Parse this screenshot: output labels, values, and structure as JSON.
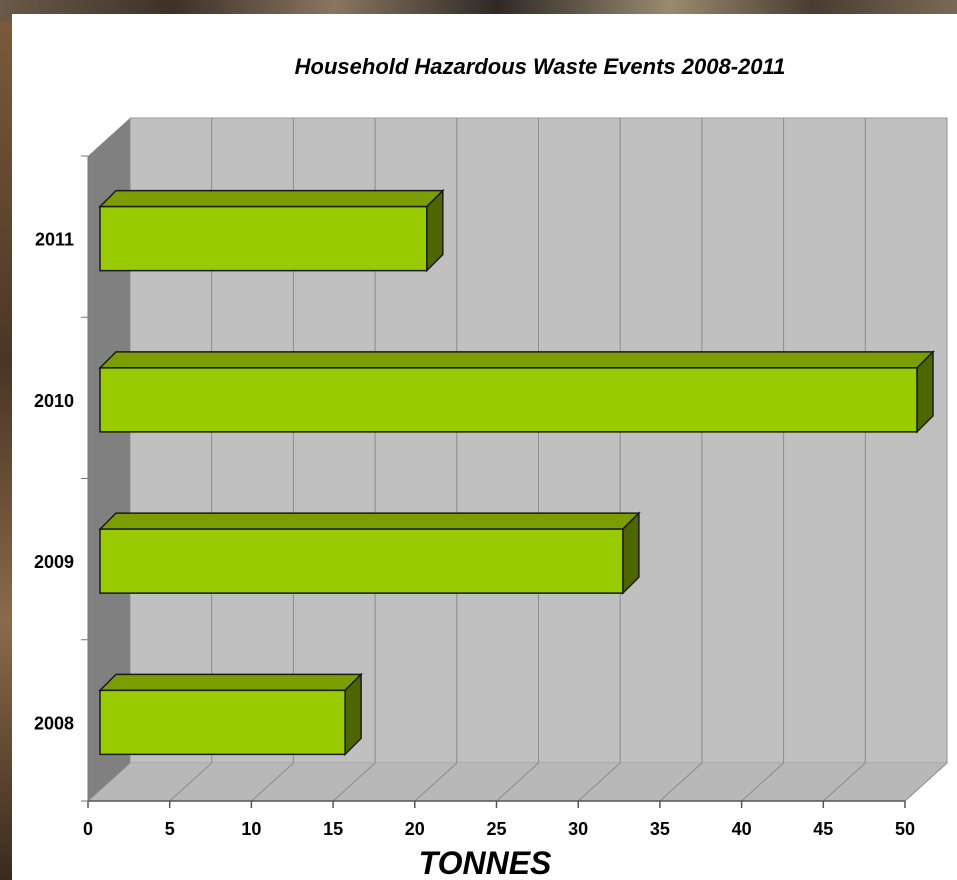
{
  "chart_data": {
    "type": "bar",
    "orientation": "horizontal",
    "title": "Household Hazardous Waste Events 2008-2011",
    "xlabel": "TONNES",
    "ylabel": "",
    "categories": [
      "2008",
      "2009",
      "2010",
      "2011"
    ],
    "values": [
      15,
      32,
      50,
      20
    ],
    "xlim": [
      0,
      50
    ],
    "xticks": [
      0,
      5,
      10,
      15,
      20,
      25,
      30,
      35,
      40,
      45,
      50
    ],
    "grid": true,
    "three_d": true,
    "colors": {
      "bar_front": "#99cc00",
      "bar_top": "#7a9e00",
      "bar_side": "#4d6600",
      "wall": "#c0c0c0",
      "side_wall": "#808080",
      "floor": "#b8b8b8",
      "grid": "#8c8c8c"
    }
  }
}
